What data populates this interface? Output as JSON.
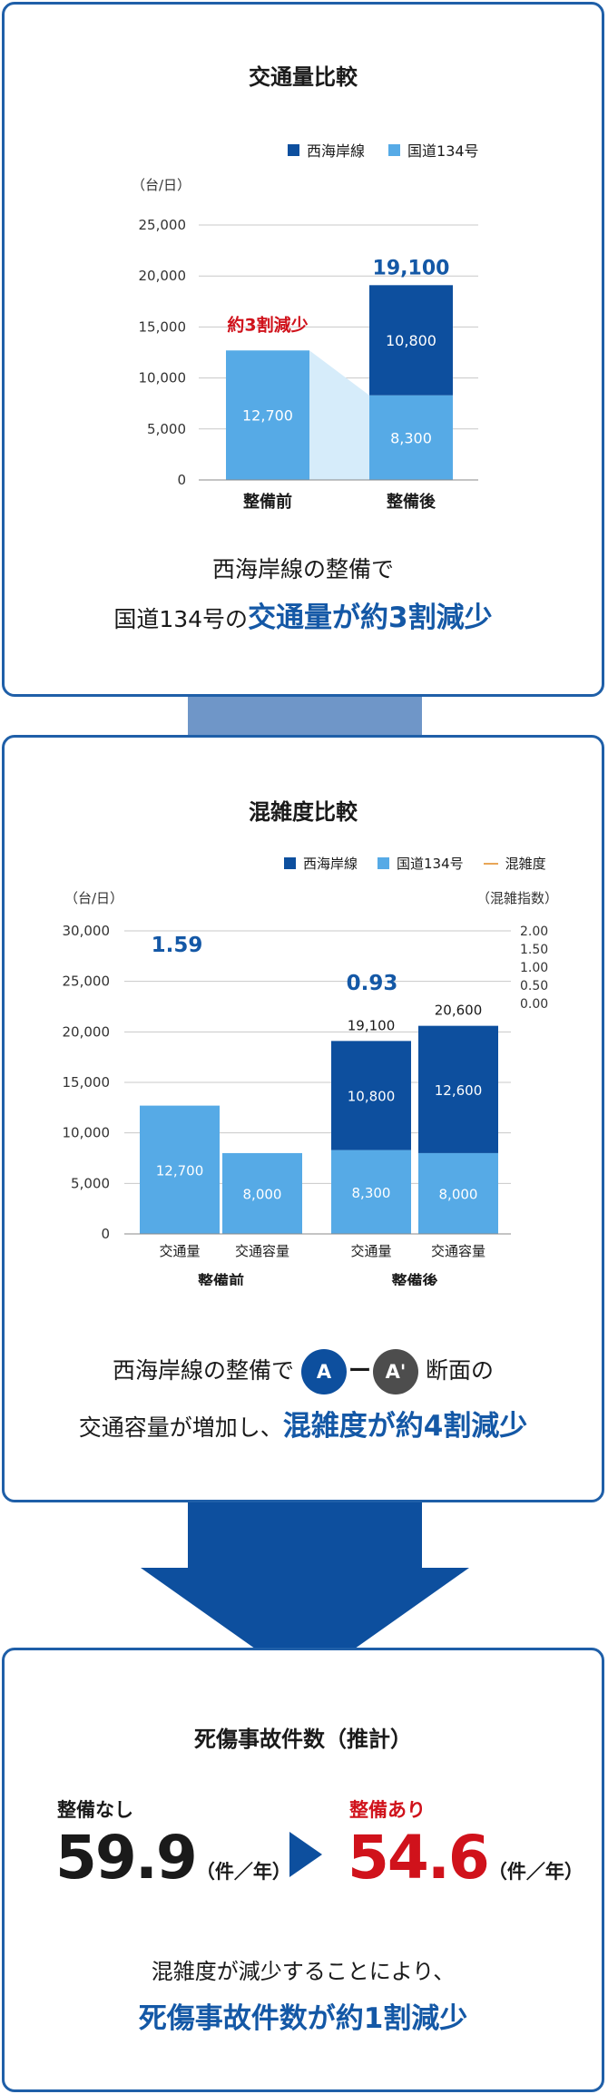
{
  "chart_data": [
    {
      "type": "bar",
      "title": "交通量比較",
      "unit_label": "（台/日）",
      "categories": [
        "整備前",
        "整備後"
      ],
      "series": [
        {
          "name": "西海岸線",
          "values": [
            0,
            10800
          ],
          "color": "#0d4f9e"
        },
        {
          "name": "国道134号",
          "values": [
            12700,
            8300
          ],
          "color": "#56aae6"
        }
      ],
      "totals": [
        "",
        "19,100"
      ],
      "y_ticks": [
        "0",
        "5,000",
        "10,000",
        "15,000",
        "20,000",
        "25,000"
      ],
      "ylim": [
        0,
        25000
      ],
      "annotation": "約3割減少",
      "legend_position": "top-right",
      "grid": true
    },
    {
      "type": "bar",
      "title": "混雑度比較",
      "unit_left": "（台/日）",
      "unit_right": "（混雑指数）",
      "groups": [
        "整備前",
        "整備後"
      ],
      "categories": [
        "交通量",
        "交通容量",
        "交通量",
        "交通容量"
      ],
      "series": [
        {
          "name": "西海岸線",
          "values": [
            0,
            0,
            10800,
            12600
          ],
          "color": "#0d4f9e"
        },
        {
          "name": "国道134号",
          "values": [
            12700,
            8000,
            8300,
            8000
          ],
          "color": "#56aae6"
        }
      ],
      "line_series": {
        "name": "混雑度",
        "color": "#e8a657"
      },
      "congestion_values": [
        "1.59",
        "0.93"
      ],
      "totals": [
        "",
        "",
        "19,100",
        "20,600"
      ],
      "y_ticks": [
        "0",
        "5,000",
        "10,000",
        "15,000",
        "20,000",
        "25,000",
        "30,000"
      ],
      "y2_ticks": [
        "0.00",
        "0.50",
        "1.00",
        "1.50",
        "2.00"
      ],
      "ylim": [
        0,
        30000
      ],
      "legend_position": "top-right",
      "grid": true
    }
  ],
  "panel1": {
    "caption_line1": "西海岸線の整備で",
    "caption_line2_prefix": "国道134号の",
    "caption_line2_highlight": "交通量が約3割減少"
  },
  "panel2": {
    "caption_line1_prefix": "西海岸線の整備で",
    "marker_a": "A",
    "dash": "ー",
    "marker_a2": "A'",
    "caption_line1_suffix": "断面の",
    "caption_line2_prefix": "交通容量が増加し、",
    "caption_line2_highlight": "混雑度が約4割減少"
  },
  "panel3": {
    "title": "死傷事故件数（推計）",
    "before_label": "整備なし",
    "before_value": "59.9",
    "unit": "（件／年）",
    "after_label": "整備あり",
    "after_value": "54.6",
    "caption_line1": "混雑度が減少することにより、",
    "caption_line2": "死傷事故件数が約1割減少"
  },
  "colors": {
    "dark_blue": "#0d4f9e",
    "light_blue": "#56aae6",
    "accent_red": "#d0121b",
    "highlight_blue": "#1458a6",
    "frame": "#1f5fa8"
  }
}
